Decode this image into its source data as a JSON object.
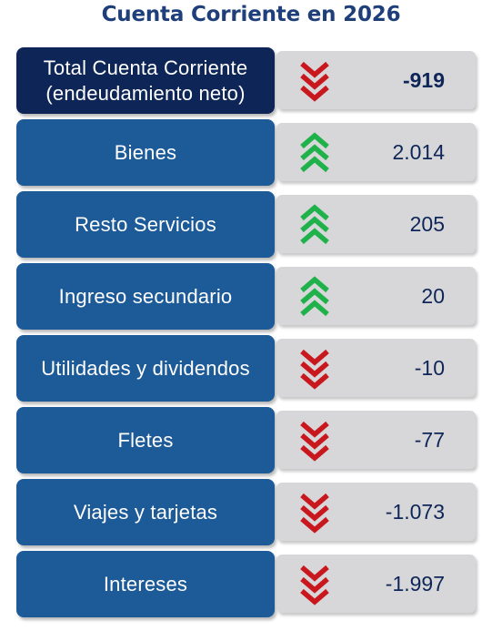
{
  "title": "Cuenta Corriente en 2026",
  "colors": {
    "title": "#1f3f7a",
    "total_box": "#0e2657",
    "item_box": "#1d5a98",
    "value_box": "#d7d7da",
    "up_arrow": "#1fb24a",
    "down_arrow": "#c8181e"
  },
  "chart_data": {
    "type": "table",
    "title": "Cuenta Corriente en 2026",
    "rows": [
      {
        "label": "Total Cuenta Corriente\n(endeudamiento neto)",
        "value": -919,
        "display": "-919",
        "direction": "down",
        "is_total": true
      },
      {
        "label": "Bienes",
        "value": 2014,
        "display": "2.014",
        "direction": "up"
      },
      {
        "label": "Resto Servicios",
        "value": 205,
        "display": "205",
        "direction": "up"
      },
      {
        "label": "Ingreso secundario",
        "value": 20,
        "display": "20",
        "direction": "up"
      },
      {
        "label": "Utilidades y dividendos",
        "value": -10,
        "display": "-10",
        "direction": "down"
      },
      {
        "label": "Fletes",
        "value": -77,
        "display": "-77",
        "direction": "down"
      },
      {
        "label": "Viajes y tarjetas",
        "value": -1073,
        "display": "-1.073",
        "direction": "down"
      },
      {
        "label": "Intereses",
        "value": -1997,
        "display": "-1.997",
        "direction": "down"
      }
    ]
  }
}
